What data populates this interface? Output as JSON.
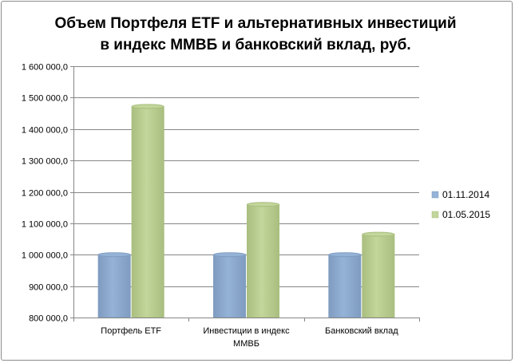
{
  "chart_data": {
    "type": "bar",
    "title_lines": [
      "Объем Портфеля ETF и альтернативных  инвестиций",
      "в индекс ММВБ и банковский  вклад,  руб."
    ],
    "categories": [
      [
        "Портфель ETF"
      ],
      [
        "Инвестиции  в индекс",
        "ММВБ"
      ],
      [
        "Банковский вклад"
      ]
    ],
    "series": [
      {
        "name": "01.11.2014",
        "color": "#95b3d7",
        "values": [
          1000000,
          1000000,
          1000000
        ]
      },
      {
        "name": "01.05.2015",
        "color": "#c3d69b",
        "values": [
          1472000,
          1160000,
          1065000
        ]
      }
    ],
    "ylim": [
      800000,
      1600000
    ],
    "y_step": 100000,
    "y_tick_labels": [
      "800 000,0",
      "900 000,0",
      "1 000 000,0",
      "1 100 000,0",
      "1 200 000,0",
      "1 300 000,0",
      "1 400 000,0",
      "1 500 000,0",
      "1 600 000,0"
    ],
    "grid": true,
    "legend_position": "right",
    "xlabel": "",
    "ylabel": ""
  }
}
